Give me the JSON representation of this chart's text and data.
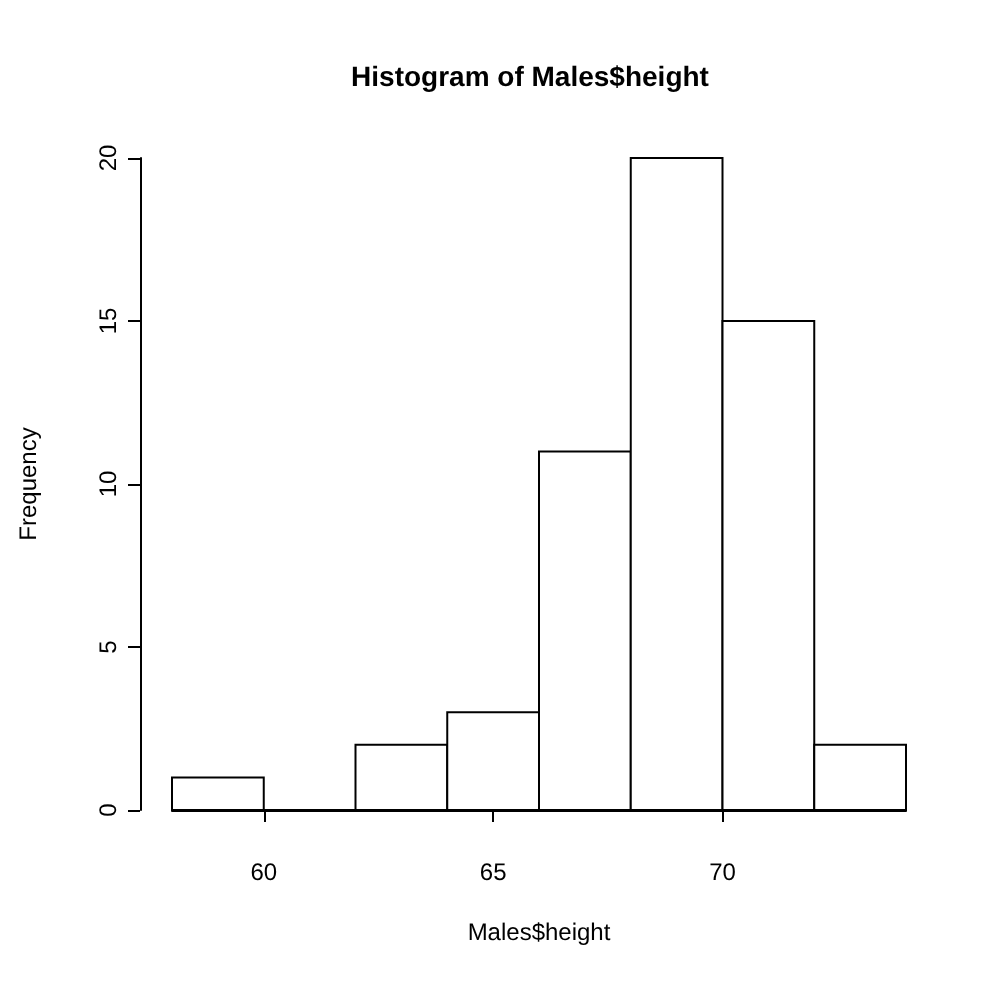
{
  "chart_data": {
    "type": "histogram",
    "title": "Histogram of Males$height",
    "xlabel": "Males$height",
    "ylabel": "Frequency",
    "bins": [
      58,
      60,
      62,
      64,
      66,
      68,
      70,
      72,
      74
    ],
    "values": [
      1,
      0,
      2,
      3,
      11,
      20,
      15,
      2
    ],
    "color": "#ffffff",
    "xlim": [
      58,
      74
    ],
    "xticks": [
      60,
      65,
      70
    ],
    "ylim": [
      0,
      20
    ],
    "yticks": [
      0,
      5,
      10,
      15,
      20
    ],
    "grid": false
  }
}
